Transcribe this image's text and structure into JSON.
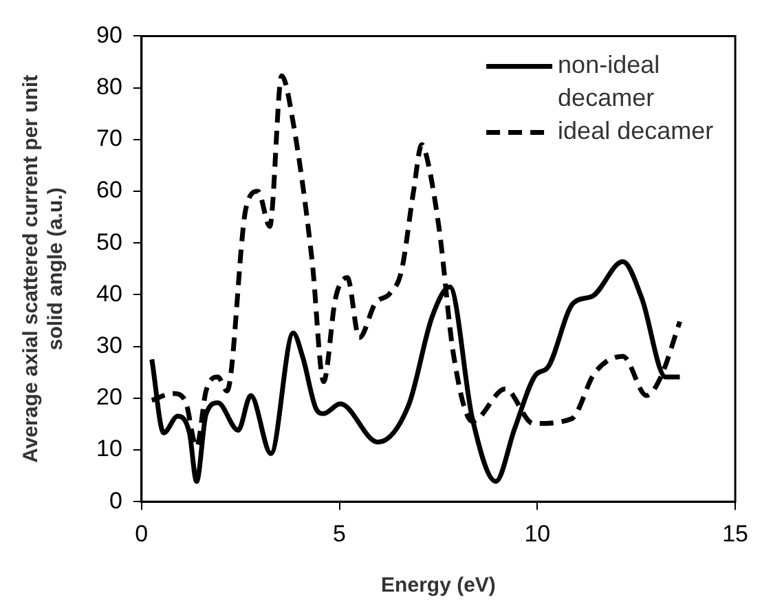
{
  "chart_data": {
    "type": "line",
    "xlabel": "Energy (eV)",
    "ylabel": "Average axial scattered current per unit solid angle (a.u.)",
    "xlim": [
      0,
      15
    ],
    "xticks": [
      0,
      5,
      10,
      15
    ],
    "ylim": [
      0,
      90
    ],
    "yticks": [
      0,
      10,
      20,
      30,
      40,
      50,
      60,
      70,
      80,
      90
    ],
    "grid": false,
    "legend": "top right",
    "marker": "none",
    "series": [
      {
        "name": "non-ideal decamer",
        "color": "#000000",
        "line_style": "solid",
        "x": [
          0.26,
          0.56,
          0.91,
          1.21,
          1.39,
          1.63,
          1.93,
          2.44,
          2.76,
          3.27,
          3.83,
          4.07,
          4.42,
          4.6,
          5.02,
          5.97,
          6.75,
          7.34,
          7.79,
          8.36,
          8.95,
          9.43,
          9.96,
          10.26,
          10.91,
          11.39,
          12.16,
          12.64,
          13.24,
          13.6
        ],
        "values": [
          27.5,
          13.3,
          16.5,
          13.3,
          3.9,
          16.9,
          19.1,
          13.8,
          20.5,
          9.3,
          32.6,
          28,
          17.8,
          17,
          18.9,
          11.5,
          18.7,
          35.7,
          41.5,
          16,
          3.9,
          14.2,
          24.5,
          25.9,
          38.4,
          39.7,
          46.4,
          39.3,
          24.1,
          24.1
        ]
      },
      {
        "name": "ideal decamer",
        "color": "#000000",
        "line_style": "dashed",
        "x": [
          0.26,
          0.8,
          1.1,
          1.39,
          1.63,
          1.93,
          2.16,
          2.64,
          2.94,
          3.24,
          3.54,
          3.83,
          4.31,
          4.6,
          4.9,
          5.2,
          5.5,
          5.91,
          6.27,
          6.57,
          6.87,
          7.08,
          7.16,
          7.52,
          7.88,
          8.36,
          9.19,
          9.9,
          10.86,
          11.45,
          12.16,
          12.76,
          13.12,
          13.6
        ],
        "values": [
          19.6,
          20.9,
          19.6,
          10.6,
          21.4,
          24.1,
          21.4,
          56.8,
          60,
          53.2,
          82.3,
          73.3,
          46.5,
          23.2,
          39.3,
          43.3,
          31.7,
          38.4,
          40.2,
          44.7,
          59.9,
          69,
          68,
          52.7,
          28.5,
          15.5,
          21.8,
          15.1,
          16,
          24.9,
          28.1,
          20.5,
          24.1,
          34.8
        ]
      }
    ]
  }
}
